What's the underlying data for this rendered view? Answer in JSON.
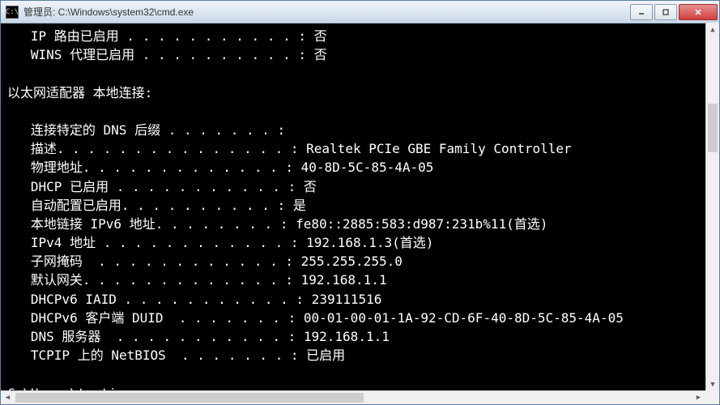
{
  "window": {
    "title": "管理员: C:\\Windows\\system32\\cmd.exe",
    "icon_label": "C:\\"
  },
  "terminal": {
    "lines": [
      {
        "label": "   IP 路由已启用 ",
        "dots": ". . . . . . . . . . . ",
        "value": ": 否"
      },
      {
        "label": "   WINS 代理已启用 ",
        "dots": ". . . . . . . . . . ",
        "value": ": 否"
      },
      {
        "raw": ""
      },
      {
        "raw": "以太网适配器 本地连接:"
      },
      {
        "raw": ""
      },
      {
        "label": "   连接特定的 DNS 后缀 ",
        "dots": ". . . . . . . ",
        "value": ":"
      },
      {
        "label": "   描述",
        "dots": ". . . . . . . . . . . . . . . ",
        "value": ": Realtek PCIe GBE Family Controller"
      },
      {
        "label": "   物理地址",
        "dots": ". . . . . . . . . . . . . ",
        "value": ": 40-8D-5C-85-4A-05"
      },
      {
        "label": "   DHCP 已启用 ",
        "dots": ". . . . . . . . . . . ",
        "value": ": 否"
      },
      {
        "label": "   自动配置已启用",
        "dots": ". . . . . . . . . . ",
        "value": ": 是"
      },
      {
        "label": "   本地链接 IPv6 地址",
        "dots": ". . . . . . . . ",
        "value": ": fe80::2885:583:d987:231b%11(首选)"
      },
      {
        "label": "   IPv4 地址 ",
        "dots": ". . . . . . . . . . . . ",
        "value": ": 192.168.1.3(首选)"
      },
      {
        "label": "   子网掩码  ",
        "dots": ". . . . . . . . . . . . ",
        "value": ": 255.255.255.0"
      },
      {
        "label": "   默认网关",
        "dots": ". . . . . . . . . . . . . ",
        "value": ": 192.168.1.1"
      },
      {
        "label": "   DHCPv6 IAID ",
        "dots": ". . . . . . . . . . . ",
        "value": ": 239111516"
      },
      {
        "label": "   DHCPv6 客户端 DUID  ",
        "dots": ". . . . . . . ",
        "value": ": 00-01-00-01-1A-92-CD-6F-40-8D-5C-85-4A-05"
      },
      {
        "label": "   DNS 服务器  ",
        "dots": ". . . . . . . . . . . ",
        "value": ": 192.168.1.1"
      },
      {
        "label": "   TCPIP 上的 NetBIOS  ",
        "dots": ". . . . . . . ",
        "value": ": 已启用"
      },
      {
        "raw": ""
      }
    ],
    "prompt": "C:\\Users\\toutiao>"
  },
  "colors": {
    "terminal_bg": "#000000",
    "terminal_fg": "#ffffff",
    "titlebar_gradient_top": "#f0f4f9",
    "titlebar_gradient_bottom": "#c8d8e8",
    "close_btn": "#d04040",
    "scrollbar_bg": "#f0f0f0",
    "scrollbar_thumb": "#cdcdcd"
  }
}
